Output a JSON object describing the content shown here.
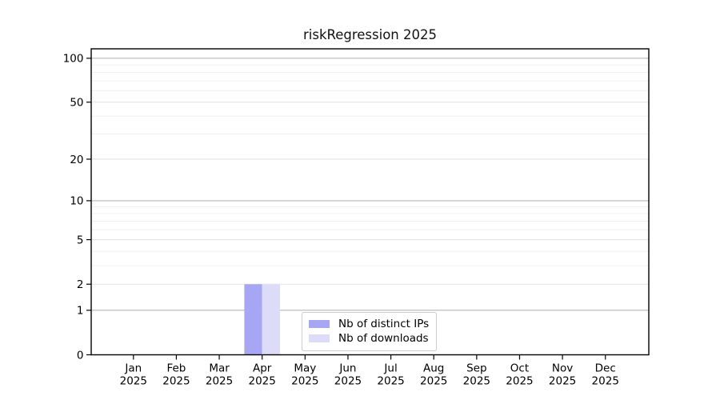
{
  "chart_data": {
    "type": "bar",
    "title": "riskRegression 2025",
    "categories": [
      "Jan",
      "Feb",
      "Mar",
      "Apr",
      "May",
      "Jun",
      "Jul",
      "Aug",
      "Sep",
      "Oct",
      "Nov",
      "Dec"
    ],
    "category_year": "2025",
    "series": [
      {
        "name": "Nb of distinct IPs",
        "color": "#a6a6f4",
        "values": [
          0,
          0,
          0,
          2,
          0,
          0,
          0,
          0,
          0,
          0,
          0,
          0
        ]
      },
      {
        "name": "Nb of downloads",
        "color": "#dcdcf9",
        "values": [
          0,
          0,
          0,
          2,
          0,
          0,
          0,
          0,
          0,
          0,
          0,
          0
        ]
      }
    ],
    "yscale": "log1p",
    "ylim": [
      0,
      116
    ],
    "yticks": [
      0,
      1,
      2,
      5,
      10,
      20,
      50,
      100
    ],
    "minor_yticks": [
      3,
      4,
      6,
      7,
      8,
      9,
      30,
      40,
      60,
      70,
      80,
      90
    ],
    "grid": "horizontal",
    "legend_position": "lower center",
    "colors": {
      "axis": "#000000",
      "tick_text": "#000000",
      "grid_decade": "#b6b6b6",
      "grid_major": "#e4e4e4",
      "grid_minor": "#f0f0f0",
      "background": "#ffffff"
    }
  }
}
